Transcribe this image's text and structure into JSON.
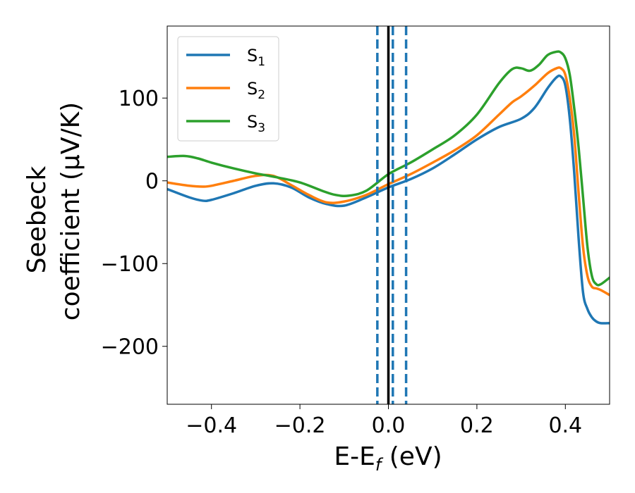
{
  "chart_data": {
    "type": "line",
    "xlabel": {
      "main": "E-E",
      "sub": "f",
      "unit": " (eV)"
    },
    "ylabel": {
      "line1": "Seebeck",
      "line2": "coefficient  (μV/K)"
    },
    "xlim": [
      -0.5,
      0.5
    ],
    "ylim": [
      -270,
      187
    ],
    "x_ticks": [
      -0.4,
      -0.2,
      0.0,
      0.2,
      0.4
    ],
    "x_tick_labels": [
      "−0.4",
      "−0.2",
      "0.0",
      "0.2",
      "0.4"
    ],
    "y_ticks": [
      -200,
      -100,
      0,
      100
    ],
    "y_tick_labels": [
      "−200",
      "−100",
      "0",
      "100"
    ],
    "grid": false,
    "legend_position": "top-left",
    "series": [
      {
        "name": "S1",
        "label_main": "S",
        "label_sub": "1",
        "color": "#1f77b4",
        "x": [
          -0.5,
          -0.45,
          -0.42,
          -0.4,
          -0.35,
          -0.3,
          -0.26,
          -0.22,
          -0.18,
          -0.14,
          -0.1,
          -0.05,
          0,
          0.05,
          0.1,
          0.15,
          0.2,
          0.25,
          0.3,
          0.33,
          0.36,
          0.38,
          0.39,
          0.4,
          0.41,
          0.42,
          0.43,
          0.44,
          0.45,
          0.46,
          0.47,
          0.48,
          0.5
        ],
        "y": [
          -10,
          -20,
          -24,
          -23,
          -15,
          -6,
          -3,
          -8,
          -20,
          -28,
          -30,
          -20,
          -8,
          2,
          15,
          32,
          50,
          65,
          75,
          88,
          112,
          125,
          126,
          115,
          75,
          10,
          -70,
          -135,
          -155,
          -165,
          -170,
          -172,
          -172
        ]
      },
      {
        "name": "S2",
        "label_main": "S",
        "label_sub": "2",
        "color": "#ff7f0e",
        "x": [
          -0.5,
          -0.45,
          -0.42,
          -0.4,
          -0.35,
          -0.3,
          -0.26,
          -0.22,
          -0.18,
          -0.14,
          -0.1,
          -0.05,
          0,
          0.05,
          0.1,
          0.15,
          0.2,
          0.25,
          0.28,
          0.3,
          0.33,
          0.36,
          0.38,
          0.39,
          0.4,
          0.41,
          0.42,
          0.43,
          0.44,
          0.45,
          0.46,
          0.47,
          0.48,
          0.5
        ],
        "y": [
          -2,
          -6,
          -7,
          -6,
          0,
          6,
          6,
          -5,
          -17,
          -26,
          -25,
          -17,
          -4,
          8,
          22,
          37,
          55,
          80,
          95,
          102,
          115,
          130,
          136,
          136,
          128,
          100,
          55,
          -15,
          -80,
          -115,
          -128,
          -130,
          -132,
          -138
        ]
      },
      {
        "name": "S3",
        "label_main": "S",
        "label_sub": "3",
        "color": "#2ca02c",
        "x": [
          -0.5,
          -0.46,
          -0.43,
          -0.4,
          -0.35,
          -0.3,
          -0.25,
          -0.2,
          -0.15,
          -0.12,
          -0.09,
          -0.05,
          0,
          0.05,
          0.1,
          0.15,
          0.2,
          0.25,
          0.28,
          0.3,
          0.32,
          0.34,
          0.36,
          0.38,
          0.39,
          0.4,
          0.41,
          0.42,
          0.43,
          0.44,
          0.45,
          0.46,
          0.47,
          0.48,
          0.5
        ],
        "y": [
          29,
          30,
          27,
          22,
          15,
          9,
          4,
          -2,
          -12,
          -17,
          -18,
          -12,
          8,
          22,
          38,
          55,
          80,
          118,
          135,
          136,
          133,
          140,
          152,
          156,
          155,
          148,
          128,
          88,
          40,
          -20,
          -80,
          -115,
          -125,
          -125,
          -117
        ]
      }
    ],
    "vertical_lines": [
      {
        "x": -0.025,
        "style": "dashed",
        "color": "#1f77b4"
      },
      {
        "x": 0.01,
        "style": "dashed",
        "color": "#1f77b4"
      },
      {
        "x": 0.04,
        "style": "dashed",
        "color": "#1f77b4"
      },
      {
        "x": 0.0,
        "style": "solid",
        "color": "#000000"
      }
    ]
  }
}
